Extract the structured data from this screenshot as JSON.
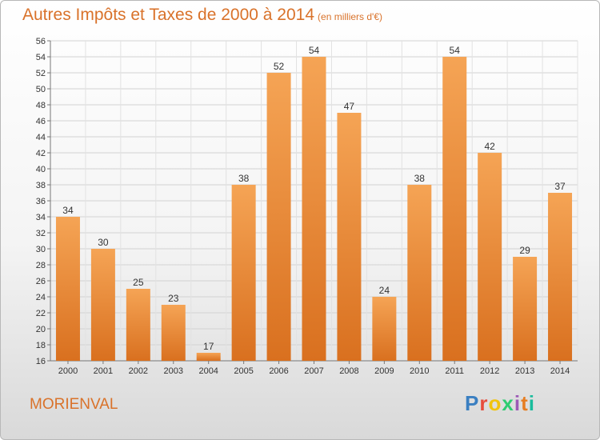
{
  "title": "Autres Impôts et Taxes de 2000 à 2014",
  "subtitle": "(en milliers d'€)",
  "place": "MORIENVAL",
  "logo": {
    "text": "Proxiti",
    "colors": [
      "#3a7fc1",
      "#e74c3c",
      "#f1c40f",
      "#2ecc71",
      "#9b59b6",
      "#e67e22",
      "#1abc9c"
    ]
  },
  "colors": {
    "bar_light": "#f5a455",
    "bar_dark": "#d9701f",
    "accent": "#d9722a"
  },
  "chart_data": {
    "type": "bar",
    "categories": [
      "2000",
      "2001",
      "2002",
      "2003",
      "2004",
      "2005",
      "2006",
      "2007",
      "2008",
      "2009",
      "2010",
      "2011",
      "2012",
      "2013",
      "2014"
    ],
    "values": [
      34,
      30,
      25,
      23,
      17,
      38,
      52,
      54,
      47,
      24,
      38,
      54,
      42,
      29,
      37
    ],
    "title": "Autres Impôts et Taxes de 2000 à 2014",
    "subtitle": "(en milliers d'€)",
    "ylim": [
      16,
      56
    ],
    "yticks": [
      16,
      18,
      20,
      22,
      24,
      26,
      28,
      30,
      32,
      34,
      36,
      38,
      40,
      42,
      44,
      46,
      48,
      50,
      52,
      54,
      56
    ],
    "grid": true,
    "legend": "none"
  }
}
